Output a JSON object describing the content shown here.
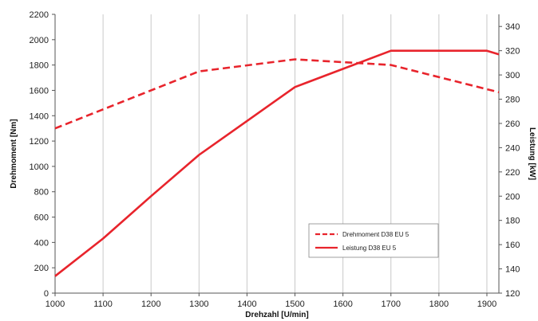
{
  "chart_data": {
    "type": "line",
    "xlabel": "Drehzahl [U/min]",
    "ylabel": "Drehmoment [Nm]",
    "y2label": "Leistung [kW]",
    "xlim": [
      1000,
      1925
    ],
    "ylim": [
      0,
      2200
    ],
    "y2lim": [
      120,
      350
    ],
    "xticks": [
      1000,
      1100,
      1200,
      1300,
      1400,
      1500,
      1600,
      1700,
      1800,
      1900
    ],
    "yticks": [
      0,
      200,
      400,
      600,
      800,
      1000,
      1200,
      1400,
      1600,
      1800,
      2000,
      2200
    ],
    "y2ticks": [
      120,
      140,
      160,
      180,
      200,
      220,
      240,
      260,
      280,
      300,
      320,
      340
    ],
    "grid": {
      "vertical": true,
      "horizontal": false
    },
    "legend_position": "bottom-right",
    "series": [
      {
        "name": "Drehmoment D38 EU 5",
        "axis": "left",
        "style": "dashed",
        "color": "#e8242c",
        "x": [
          1000,
          1300,
          1500,
          1700,
          1925
        ],
        "y": [
          1300,
          1750,
          1845,
          1800,
          1585
        ]
      },
      {
        "name": "Leistung D38 EU 5",
        "axis": "right",
        "style": "solid",
        "color": "#e8242c",
        "x": [
          1000,
          1100,
          1200,
          1300,
          1400,
          1500,
          1600,
          1700,
          1800,
          1900,
          1925
        ],
        "y": [
          134,
          165,
          200,
          234,
          262,
          290,
          305,
          320,
          320,
          320,
          317
        ]
      }
    ]
  }
}
